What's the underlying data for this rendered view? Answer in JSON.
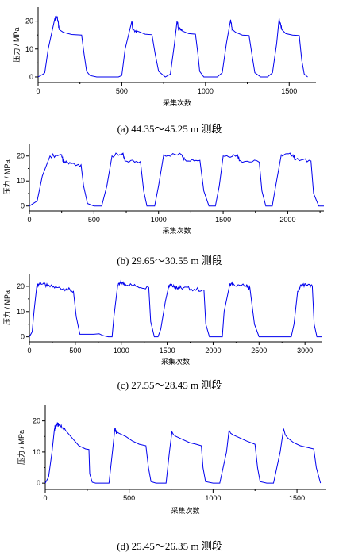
{
  "figure": {
    "charts": [
      {
        "caption": "(a) 44.35～45.25 m 测段",
        "xlabel": "采集次数",
        "ylabel": "压力 / MPa",
        "xticks": [
          0,
          500,
          1000,
          1500
        ],
        "yticks": [
          0,
          10,
          20
        ],
        "xlim": [
          0,
          1660
        ],
        "ylim": [
          -2,
          25
        ]
      },
      {
        "caption": "(b) 29.65～30.55 m 测段",
        "xlabel": "采集次数",
        "ylabel": "压力 / MPa",
        "xticks": [
          0,
          500,
          1000,
          1500,
          2000
        ],
        "yticks": [
          0,
          10,
          20
        ],
        "xlim": [
          0,
          2280
        ],
        "ylim": [
          -2,
          25
        ]
      },
      {
        "caption": "(c) 27.55～28.45 m 测段",
        "xlabel": "采集次数",
        "ylabel": "压力 / MPa",
        "xticks": [
          0,
          500,
          1000,
          1500,
          2000,
          2500,
          3000
        ],
        "yticks": [
          0,
          10,
          20
        ],
        "xlim": [
          0,
          3180
        ],
        "ylim": [
          -2,
          25
        ]
      },
      {
        "caption": "(d) 25.45～26.35 m 测段",
        "xlabel": "采集次数",
        "ylabel": "压力 / MPa",
        "xticks": [
          0,
          500,
          1000,
          1500
        ],
        "yticks": [
          0,
          10,
          20
        ],
        "xlim": [
          0,
          1670
        ],
        "ylim": [
          -2,
          25
        ]
      }
    ],
    "line_color": "#0000ee"
  },
  "chart_data": [
    {
      "type": "line",
      "title": "(a) 44.35～45.25 m 测段",
      "xlabel": "采集次数",
      "ylabel": "压力 / MPa",
      "xlim": [
        0,
        1660
      ],
      "ylim": [
        -2,
        25
      ],
      "series": [
        {
          "x": [
            0,
            30,
            40,
            60,
            100,
            115,
            125,
            150,
            200,
            260,
            275,
            290,
            310,
            350,
            410,
            480,
            500,
            520,
            560,
            565,
            590,
            640,
            680,
            700,
            720,
            760,
            790,
            815,
            830,
            840,
            860,
            900,
            940,
            955,
            965,
            990,
            1030,
            1070,
            1100,
            1125,
            1150,
            1160,
            1180,
            1220,
            1260,
            1280,
            1295,
            1330,
            1370,
            1400,
            1425,
            1440,
            1455,
            1480,
            1520,
            1560,
            1575,
            1590,
            1610
          ],
          "y": [
            0,
            1,
            1.5,
            10,
            21,
            21.5,
            17,
            16,
            15.2,
            15,
            8,
            2,
            0.5,
            0,
            0,
            0,
            0.5,
            10,
            20,
            17,
            16.5,
            15.3,
            15.1,
            8,
            2,
            0,
            1,
            12,
            20,
            17,
            16.5,
            15.5,
            15.3,
            8,
            2,
            0,
            0,
            0,
            1.5,
            12,
            20.5,
            17,
            16,
            15,
            14.8,
            7,
            1.5,
            0,
            0,
            1.5,
            12,
            21,
            17,
            15.5,
            15,
            14.8,
            6,
            1,
            0
          ]
        }
      ]
    },
    {
      "type": "line",
      "title": "(b) 29.65～30.55 m 测段",
      "xlabel": "采集次数",
      "ylabel": "压力 / MPa",
      "xlim": [
        0,
        2280
      ],
      "ylim": [
        -2,
        25
      ],
      "series": [
        {
          "x": [
            0,
            60,
            100,
            160,
            250,
            262,
            320,
            400,
            420,
            450,
            500,
            560,
            600,
            640,
            720,
            740,
            860,
            885,
            910,
            970,
            1000,
            1040,
            1180,
            1200,
            1320,
            1350,
            1390,
            1440,
            1470,
            1500,
            1610,
            1630,
            1780,
            1800,
            1830,
            1880,
            1910,
            1950,
            2040,
            2060,
            2180,
            2200,
            2240,
            2280
          ],
          "y": [
            0,
            2,
            12,
            20,
            20.5,
            17.5,
            17,
            16.5,
            8,
            1,
            0,
            0,
            8,
            20,
            21,
            18,
            17.8,
            6,
            0,
            0,
            8,
            20.5,
            20.5,
            18.8,
            18.3,
            6,
            0,
            0,
            8,
            20,
            20.5,
            18.2,
            17.5,
            6,
            0,
            0,
            9,
            20.5,
            20.5,
            18.5,
            18,
            5,
            0,
            0
          ]
        }
      ]
    },
    {
      "type": "line",
      "title": "(c) 27.55～28.45 m 测段",
      "xlabel": "采集次数",
      "ylabel": "压力 / MPa",
      "xlim": [
        0,
        3180
      ],
      "ylim": [
        -2,
        25
      ],
      "series": [
        {
          "x": [
            0,
            30,
            50,
            80,
            120,
            200,
            300,
            400,
            480,
            510,
            550,
            700,
            760,
            800,
            860,
            900,
            920,
            960,
            1000,
            1040,
            1160,
            1300,
            1320,
            1360,
            1400,
            1430,
            1480,
            1520,
            1540,
            1580,
            1620,
            1650,
            1760,
            1900,
            1920,
            1960,
            2020,
            2060,
            2100,
            2120,
            2180,
            2220,
            2360,
            2400,
            2450,
            2500,
            2610,
            2700,
            2720,
            2800,
            2850,
            2880,
            2920,
            2960,
            3020,
            3080,
            3100,
            3130,
            3180
          ],
          "y": [
            0,
            2,
            10,
            20,
            21.5,
            20,
            19.5,
            19,
            18,
            8,
            1,
            1,
            1.2,
            0.5,
            0,
            0,
            8,
            20,
            21.5,
            21,
            20,
            19.5,
            6,
            0,
            0,
            3,
            14,
            20.5,
            21,
            20,
            19.5,
            19.5,
            19,
            18.5,
            5,
            0,
            0,
            0,
            0,
            10,
            20.5,
            21,
            20,
            19.5,
            5,
            0,
            0,
            0,
            0,
            0,
            0,
            5,
            18,
            20.5,
            20.5,
            20,
            5,
            0,
            0
          ]
        }
      ]
    },
    {
      "type": "line",
      "title": "(d) 25.45～26.35 m 测段",
      "xlabel": "采集次数",
      "ylabel": "压力 / MPa",
      "xlim": [
        0,
        1670
      ],
      "ylim": [
        -2,
        25
      ],
      "series": [
        {
          "x": [
            0,
            20,
            40,
            55,
            65,
            80,
            120,
            160,
            200,
            240,
            260,
            265,
            280,
            300,
            350,
            380,
            400,
            415,
            425,
            440,
            480,
            520,
            560,
            600,
            615,
            630,
            660,
            720,
            740,
            755,
            765,
            780,
            820,
            860,
            900,
            930,
            940,
            955,
            1000,
            1040,
            1080,
            1095,
            1105,
            1120,
            1160,
            1200,
            1250,
            1265,
            1280,
            1320,
            1360,
            1400,
            1420,
            1430,
            1445,
            1480,
            1520,
            1560,
            1600,
            1615,
            1640
          ],
          "y": [
            0,
            2,
            10,
            17.5,
            19,
            18.5,
            17,
            14.5,
            12,
            11,
            10.8,
            3,
            0.3,
            0,
            0,
            0,
            10,
            17.5,
            16.5,
            16,
            15,
            13.5,
            12.5,
            12,
            5,
            0.5,
            0,
            0,
            10,
            16.5,
            15.5,
            15,
            14,
            13,
            12.5,
            12,
            5,
            0.5,
            0,
            0,
            10,
            17,
            16,
            15.5,
            14.5,
            13.5,
            12.5,
            5,
            0.5,
            0,
            0,
            10,
            17.5,
            15.5,
            14.5,
            13,
            12,
            11.5,
            11,
            5,
            0
          ]
        }
      ]
    }
  ]
}
